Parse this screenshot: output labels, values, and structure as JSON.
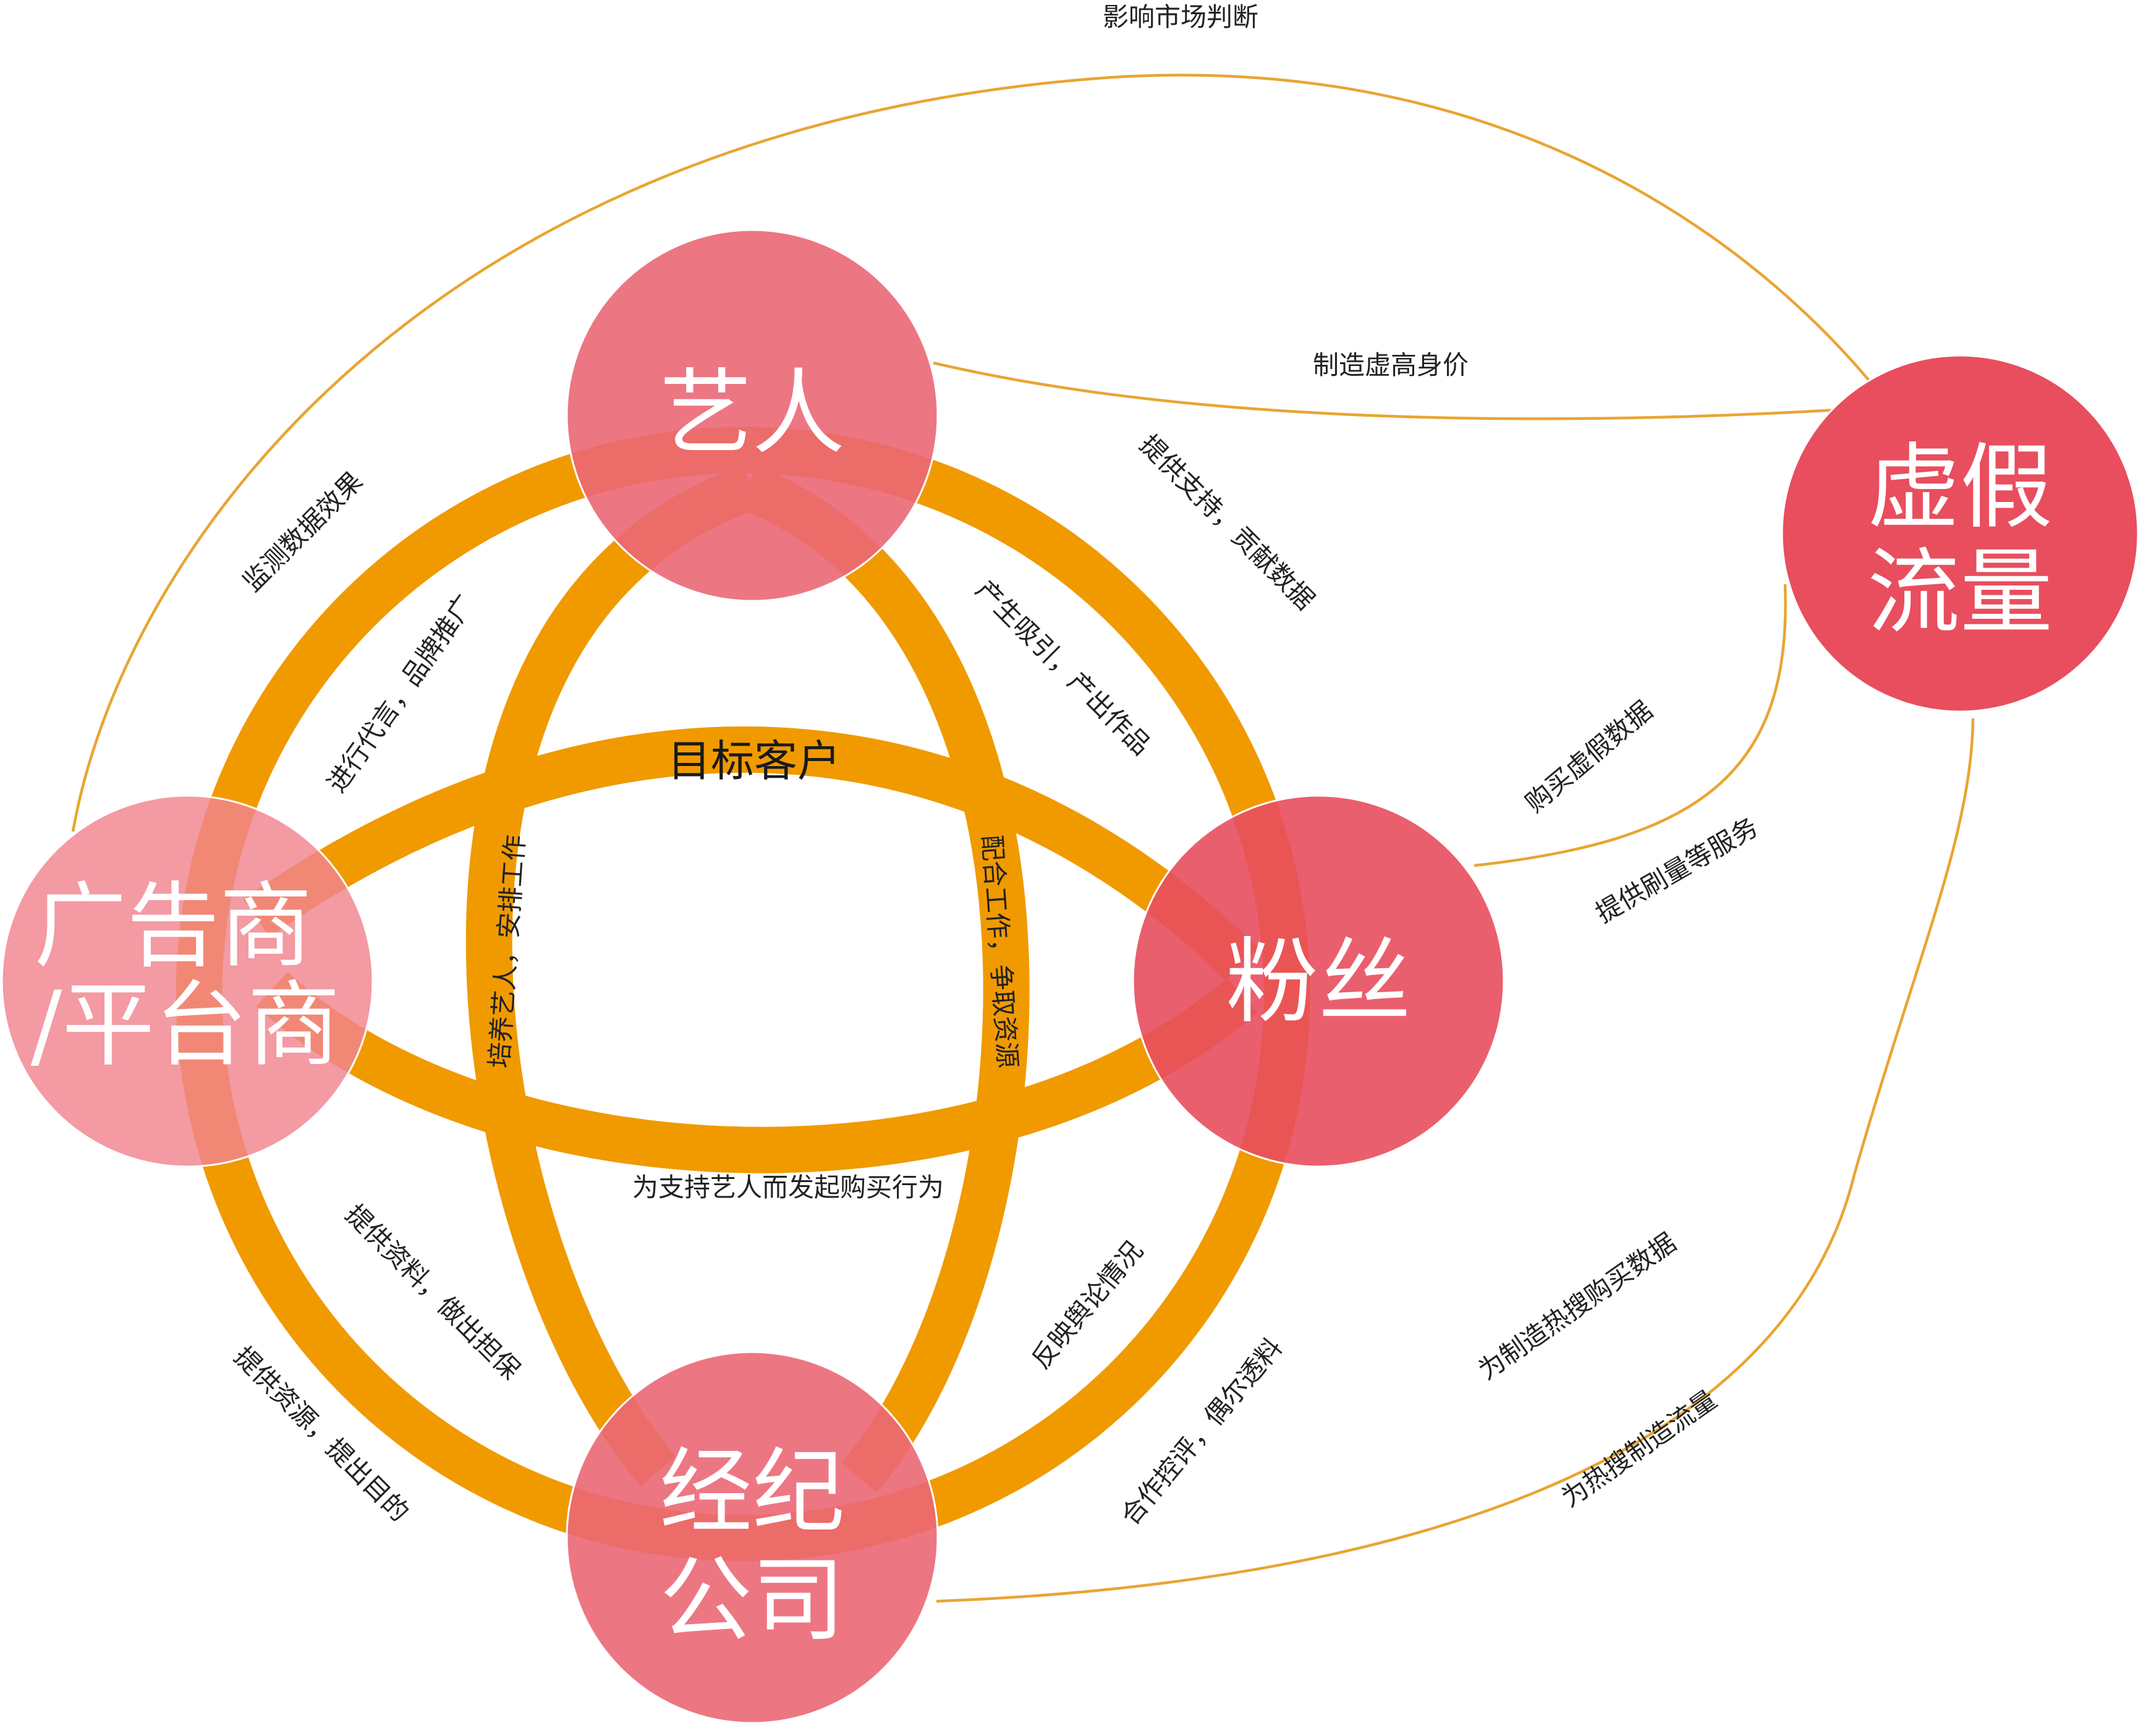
{
  "nodes": {
    "artist": {
      "lines": [
        "艺人"
      ]
    },
    "advertiser": {
      "lines": [
        "广告商",
        "/平台商"
      ]
    },
    "fans": {
      "lines": [
        "粉丝"
      ]
    },
    "agency": {
      "lines": [
        "经纪",
        "公司"
      ]
    },
    "fake_traffic": {
      "lines": [
        "虚假",
        "流量"
      ]
    }
  },
  "labels": {
    "influence_market": "影响市场判断",
    "create_fake_value": "制造虚高身价",
    "monitor_data": "监测数据效果",
    "endorse_promote": "进行代言，品牌推广",
    "provide_support": "提供支持，贡献数据",
    "attract_produce": "产生吸引，产出作品",
    "target_customer": "目标客户",
    "train_artist": "培养艺人，安排工作",
    "cooperate_work": "配合工作，争取资源",
    "buy_fake_data": "购买虚假数据",
    "boost_service": "提供刷量等服务",
    "fan_purchase": "为支持艺人而发起购买行为",
    "provide_materials": "提供资料，做出担保",
    "reflect_opinion": "反映舆论情况",
    "provide_resources": "提供资源，提出目的",
    "control_leak": "合作控评，偶尔透料",
    "hot_search_data": "为制造热搜购买数据",
    "hot_search_traffic": "为热搜制造流量"
  },
  "colors": {
    "band": "#f09a00",
    "thin_line": "#e8a533",
    "node_artist": "#eb6775",
    "node_advertiser": "#f0848f",
    "node_fans": "#e84e5e",
    "node_agency": "#eb6775",
    "node_fake": "#e84e5e"
  }
}
